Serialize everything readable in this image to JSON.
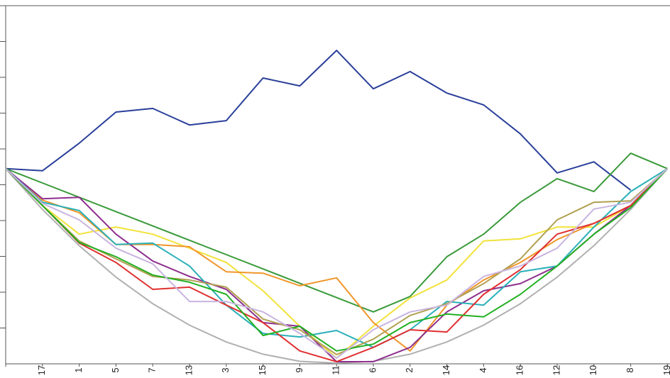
{
  "chart_data": {
    "type": "line",
    "categories": [
      null,
      "17",
      "1",
      "5",
      "7",
      "13",
      "3",
      "15",
      "9",
      "11",
      "6",
      "2",
      "14",
      "4",
      "16",
      "12",
      "10",
      "8",
      "19"
    ],
    "ylim": [
      0,
      10
    ],
    "yticks": [
      1,
      2,
      3,
      4,
      5,
      6,
      7,
      8,
      9
    ],
    "series": [
      {
        "color": "#2a3f9a",
        "values": [
          5.45,
          5.39,
          6.16,
          7.03,
          7.13,
          6.67,
          6.79,
          7.98,
          7.76,
          8.75,
          7.68,
          8.16,
          7.56,
          7.23,
          6.42,
          5.33,
          5.64,
          4.85,
          null
        ]
      },
      {
        "color": "#b0b0b0",
        "values": [
          5.45,
          4.31,
          3.3,
          2.42,
          1.68,
          1.08,
          0.61,
          0.27,
          0.07,
          0.02,
          0.07,
          0.27,
          0.61,
          1.08,
          1.68,
          2.42,
          3.3,
          4.31,
          5.45
        ]
      },
      {
        "color": "#3a9a3a",
        "values": [
          5.45,
          5.05,
          4.65,
          4.25,
          3.85,
          3.45,
          3.05,
          2.65,
          2.25,
          1.85,
          1.45,
          1.88,
          2.99,
          3.62,
          4.51,
          5.17,
          4.81,
          5.88,
          5.45
        ]
      },
      {
        "color": "#f2e23a",
        "values": [
          5.45,
          4.42,
          3.62,
          3.82,
          3.62,
          3.23,
          2.83,
          2.04,
          1.05,
          0.16,
          1.05,
          1.84,
          2.34,
          3.43,
          3.49,
          3.82,
          3.82,
          4.42,
          5.45
        ]
      },
      {
        "color": "#f0962a",
        "values": [
          5.45,
          4.57,
          4.22,
          3.33,
          3.33,
          3.27,
          2.57,
          2.53,
          2.18,
          2.4,
          1.15,
          0.36,
          1.64,
          2.34,
          2.83,
          3.47,
          3.92,
          4.42,
          5.45
        ]
      },
      {
        "color": "#8e2f8e",
        "values": [
          5.45,
          4.61,
          4.65,
          3.62,
          2.87,
          2.44,
          2.08,
          1.15,
          1.05,
          0.06,
          0.06,
          0.46,
          1.45,
          2.04,
          2.24,
          2.73,
          3.62,
          4.42,
          5.45
        ]
      },
      {
        "color": "#2ab0b8",
        "values": [
          5.45,
          4.51,
          4.28,
          3.33,
          3.37,
          2.73,
          1.64,
          0.85,
          0.75,
          0.93,
          0.46,
          0.95,
          1.74,
          1.64,
          2.57,
          2.73,
          3.82,
          4.81,
          5.45
        ]
      },
      {
        "color": "#e03030",
        "values": [
          5.45,
          4.42,
          3.37,
          2.83,
          2.08,
          2.14,
          1.64,
          1.15,
          0.36,
          0.06,
          0.46,
          0.95,
          0.89,
          1.94,
          2.63,
          3.62,
          3.92,
          4.42,
          5.45
        ]
      },
      {
        "color": "#b0a050",
        "values": [
          5.45,
          4.42,
          3.43,
          2.93,
          2.44,
          2.34,
          2.14,
          1.25,
          0.95,
          0.26,
          0.69,
          1.35,
          1.68,
          2.24,
          2.93,
          4.02,
          4.51,
          4.55,
          5.45
        ]
      },
      {
        "color": "#22b022",
        "values": [
          5.45,
          4.42,
          3.39,
          2.99,
          2.48,
          2.28,
          1.94,
          0.79,
          1.05,
          0.36,
          0.55,
          1.15,
          1.39,
          1.31,
          1.94,
          2.73,
          3.62,
          4.36,
          5.45
        ]
      },
      {
        "color": "#c8b4e0",
        "values": [
          5.45,
          4.48,
          4.02,
          3.23,
          2.79,
          1.74,
          1.74,
          1.45,
          0.85,
          0.16,
          0.95,
          1.45,
          1.64,
          2.44,
          2.73,
          3.23,
          4.32,
          4.51,
          5.45
        ]
      }
    ]
  }
}
